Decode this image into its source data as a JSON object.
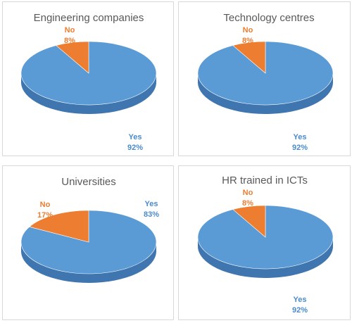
{
  "colors": {
    "yes": "#5B9BD5",
    "no": "#ED7D31",
    "yes_side": "#3F76B0",
    "no_side": "#B55A1E"
  },
  "chart_data": [
    {
      "type": "pie",
      "title": "Engineering companies",
      "slices": [
        {
          "label": "Yes",
          "value": 92,
          "display": "92%"
        },
        {
          "label": "No",
          "value": 8,
          "display": "8%"
        }
      ]
    },
    {
      "type": "pie",
      "title": "Technology centres",
      "slices": [
        {
          "label": "Yes",
          "value": 92,
          "display": "92%"
        },
        {
          "label": "No",
          "value": 8,
          "display": "8%"
        }
      ]
    },
    {
      "type": "pie",
      "title": "Universities",
      "slices": [
        {
          "label": "Yes",
          "value": 83,
          "display": "83%"
        },
        {
          "label": "No",
          "value": 17,
          "display": "17%"
        }
      ]
    },
    {
      "type": "pie",
      "title": "HR trained in ICTs",
      "slices": [
        {
          "label": "Yes",
          "value": 92,
          "display": "92%"
        },
        {
          "label": "No",
          "value": 8,
          "display": "8%"
        }
      ]
    }
  ]
}
